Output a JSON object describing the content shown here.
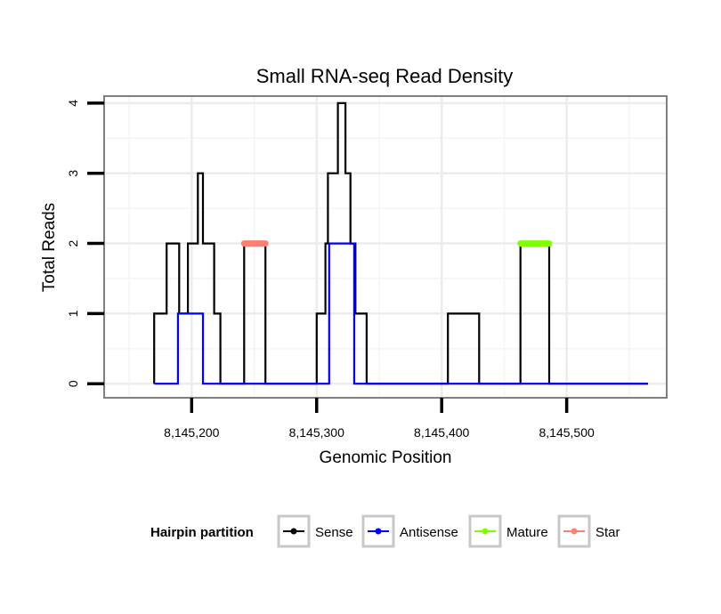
{
  "chart_data": {
    "type": "line",
    "title": "Small RNA-seq Read Density",
    "xlabel": "Genomic Position",
    "ylabel": "Total Reads",
    "xlim": [
      8145130,
      8145580
    ],
    "ylim": [
      -0.2,
      4.1
    ],
    "x_ticks": [
      {
        "value": 8145200,
        "label": "8,145,200"
      },
      {
        "value": 8145300,
        "label": "8,145,300"
      },
      {
        "value": 8145400,
        "label": "8,145,400"
      },
      {
        "value": 8145500,
        "label": "8,145,500"
      }
    ],
    "y_ticks": [
      {
        "value": 0,
        "label": "0"
      },
      {
        "value": 1,
        "label": "1"
      },
      {
        "value": 2,
        "label": "2"
      },
      {
        "value": 3,
        "label": "3"
      },
      {
        "value": 4,
        "label": "4"
      }
    ],
    "grid": true,
    "legend_position": "bottom",
    "legend_title": "Hairpin partition",
    "series": [
      {
        "name": "Sense",
        "color": "#000000",
        "points": [
          [
            8145170,
            0
          ],
          [
            8145170,
            1
          ],
          [
            8145180,
            1
          ],
          [
            8145180,
            2
          ],
          [
            8145190,
            2
          ],
          [
            8145190,
            1
          ],
          [
            8145197,
            1
          ],
          [
            8145197,
            2
          ],
          [
            8145205,
            2
          ],
          [
            8145205,
            3
          ],
          [
            8145209,
            3
          ],
          [
            8145209,
            2
          ],
          [
            8145218,
            2
          ],
          [
            8145218,
            1
          ],
          [
            8145223,
            1
          ],
          [
            8145223,
            0
          ],
          [
            8145238,
            0
          ],
          [
            8145242,
            0
          ],
          [
            8145242,
            2
          ],
          [
            8145259,
            2
          ],
          [
            8145259,
            0
          ],
          [
            8145300,
            0
          ],
          [
            8145300,
            1
          ],
          [
            8145307,
            1
          ],
          [
            8145307,
            2
          ],
          [
            8145309,
            2
          ],
          [
            8145309,
            3
          ],
          [
            8145317,
            3
          ],
          [
            8145317,
            4
          ],
          [
            8145323,
            4
          ],
          [
            8145323,
            3
          ],
          [
            8145327,
            3
          ],
          [
            8145327,
            2
          ],
          [
            8145331,
            2
          ],
          [
            8145331,
            1
          ],
          [
            8145340,
            1
          ],
          [
            8145340,
            0
          ],
          [
            8145405,
            0
          ],
          [
            8145405,
            1
          ],
          [
            8145430,
            1
          ],
          [
            8145430,
            0
          ],
          [
            8145463,
            0
          ],
          [
            8145463,
            2
          ],
          [
            8145486,
            2
          ],
          [
            8145486,
            0
          ],
          [
            8145565,
            0
          ]
        ]
      },
      {
        "name": "Antisense",
        "color": "#0000ff",
        "points": [
          [
            8145170,
            0
          ],
          [
            8145189,
            0
          ],
          [
            8145189,
            1
          ],
          [
            8145209,
            1
          ],
          [
            8145209,
            0
          ],
          [
            8145310,
            0
          ],
          [
            8145310,
            2
          ],
          [
            8145330,
            2
          ],
          [
            8145330,
            0
          ],
          [
            8145565,
            0
          ]
        ]
      },
      {
        "name": "Mature",
        "color": "#7fff00",
        "points": [
          [
            8145463,
            2
          ],
          [
            8145486,
            2
          ]
        ]
      },
      {
        "name": "Star",
        "color": "#fa8072",
        "points": [
          [
            8145242,
            2
          ],
          [
            8145259,
            2
          ]
        ]
      }
    ]
  }
}
